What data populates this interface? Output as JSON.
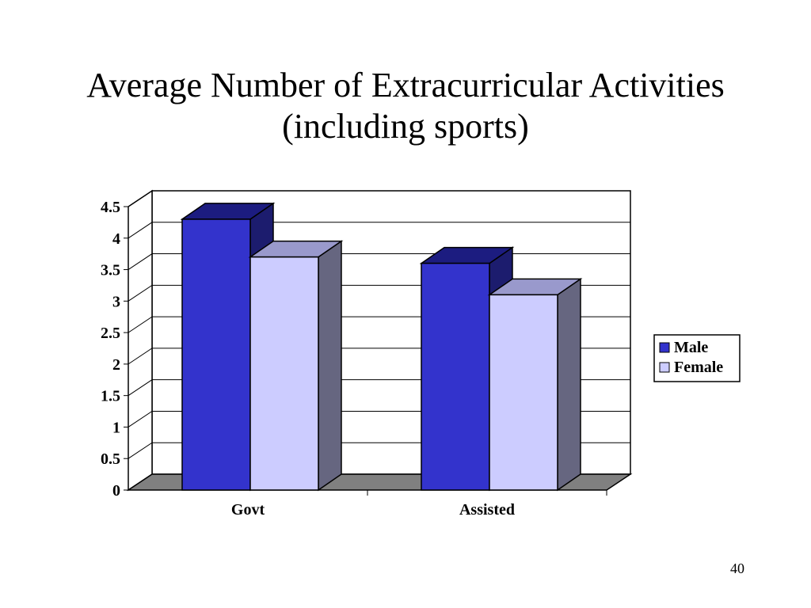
{
  "slide": {
    "title_line1": "Average Number of Extracurricular Activities",
    "title_line2": "(including sports)",
    "page_number": "40"
  },
  "chart_data": {
    "type": "bar",
    "style": "3d-clustered-column",
    "categories": [
      "Govt",
      "Assisted"
    ],
    "series": [
      {
        "name": "Male",
        "values": [
          4.3,
          3.6
        ],
        "color": "#3333CC",
        "top_color": "#1C1C80",
        "side_color": "#1C1C6E"
      },
      {
        "name": "Female",
        "values": [
          3.7,
          3.1
        ],
        "color": "#CCCCFF",
        "top_color": "#9999CC",
        "side_color": "#666680"
      }
    ],
    "y_ticks": [
      "0",
      "0.5",
      "1",
      "1.5",
      "2",
      "2.5",
      "3",
      "3.5",
      "4",
      "4.5"
    ],
    "ylim": [
      0,
      4.5
    ],
    "grid": true,
    "floor_color": "#808080",
    "legend_position": "right"
  }
}
